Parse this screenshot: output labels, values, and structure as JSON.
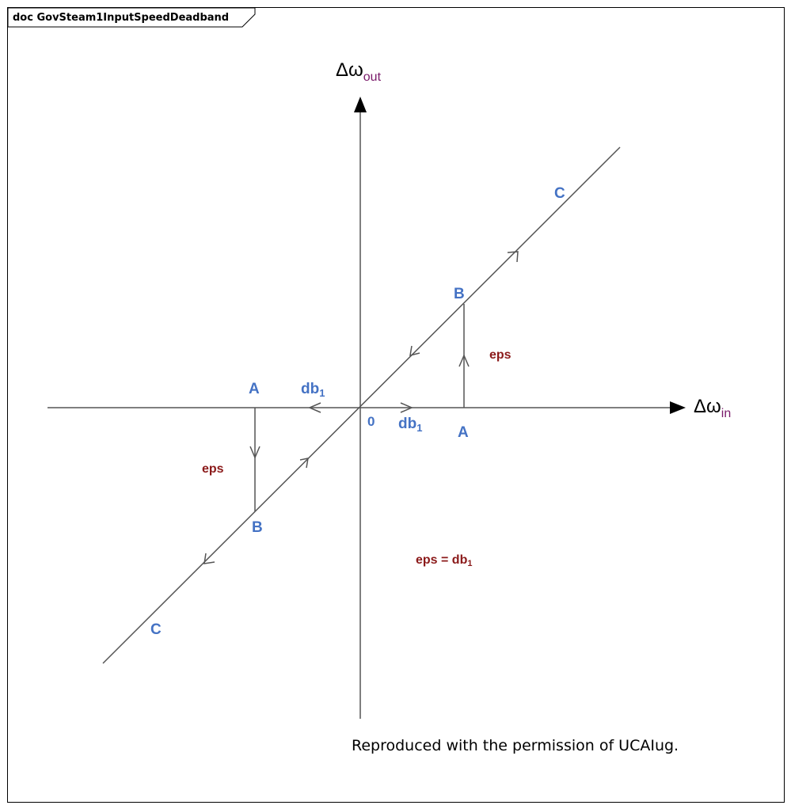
{
  "frame": {
    "title": "doc GovSteam1InputSpeedDeadband"
  },
  "axes": {
    "x_label_main": "Δω",
    "x_label_sub": "in",
    "y_label_main": "Δω",
    "y_label_sub": "out",
    "origin_label": "0"
  },
  "labels": {
    "point_a": "A",
    "point_b": "B",
    "point_c": "C",
    "db_main": "db",
    "db_sub": "1",
    "eps": "eps",
    "equation_prefix": "eps = db",
    "equation_sub": "1"
  },
  "credit": "Reproduced with the permission of UCAIug.",
  "colors": {
    "label_blue": "#4472c4",
    "label_red": "#8b1a1a",
    "axis_sub": "#7a1a6a",
    "line": "#555555"
  }
}
